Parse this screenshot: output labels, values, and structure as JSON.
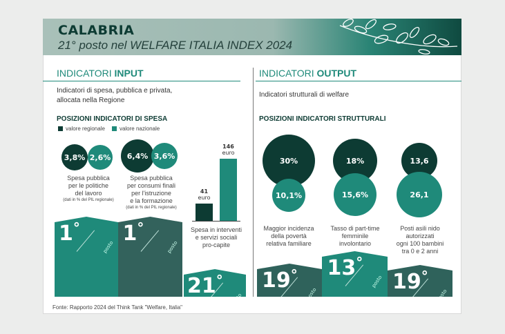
{
  "header": {
    "title": "CALABRIA",
    "subtitle": "21° posto nel WELFARE ITALIA INDEX 2024"
  },
  "input": {
    "heading_prefix": "INDICATORI ",
    "heading_bold": "INPUT",
    "description_lines": [
      "Indicatori di spesa, pubblica e privata,",
      "allocata nella Regione"
    ],
    "subheading": "POSIZIONI INDICATORI DI SPESA",
    "legend": [
      {
        "label": "valore regionale",
        "color": "#0d3b33"
      },
      {
        "label": "valore nazionale",
        "color": "#1f8a7a"
      }
    ],
    "indicators": [
      {
        "regional": "3,8%",
        "national": "2,6%",
        "caption": [
          "Spesa pubblica",
          "per le politiche",
          "del lavoro"
        ],
        "note": "(dati in % del PIL regionale)",
        "rank": "1",
        "posto": "posto"
      },
      {
        "regional": "6,4%",
        "national": "3,6%",
        "caption": [
          "Spesa pubblica",
          "per consumi finali",
          "per l'istruzione",
          "e la formazione"
        ],
        "note": "(dati in % del PIL regionale)",
        "rank": "1",
        "posto": "posto"
      },
      {
        "regional_value": 41,
        "national_value": 146,
        "regional": "41",
        "national": "146",
        "unit": "euro",
        "caption": [
          "Spesa in interventi",
          "e servizi sociali",
          "pro-capite"
        ],
        "rank": "21",
        "posto": "posto"
      }
    ]
  },
  "output": {
    "heading_prefix": "INDICATORI ",
    "heading_bold": "OUTPUT",
    "description": "Indicatori strutturali di welfare",
    "subheading": "POSIZIONI INDICATORI STRUTTURALI",
    "indicators": [
      {
        "regional": "30%",
        "national": "10,1%",
        "caption": [
          "Maggior incidenza",
          "della povertà",
          "relativa familiare"
        ],
        "rank": "19",
        "posto": "posto"
      },
      {
        "regional": "18%",
        "national": "15,6%",
        "caption": [
          "Tasso di part-time",
          "femminile",
          "involontario"
        ],
        "rank": "13",
        "posto": "posto"
      },
      {
        "regional": "13,6",
        "national": "26,1",
        "caption": [
          "Posti asili nido",
          "autorizzati",
          "ogni 100 bambini",
          "tra 0 e 2 anni"
        ],
        "rank": "19",
        "posto": "posto"
      }
    ]
  },
  "degree": "°",
  "footer": "Fonte: Rapporto 2024 del Think Tank \"Welfare, Italia\""
}
